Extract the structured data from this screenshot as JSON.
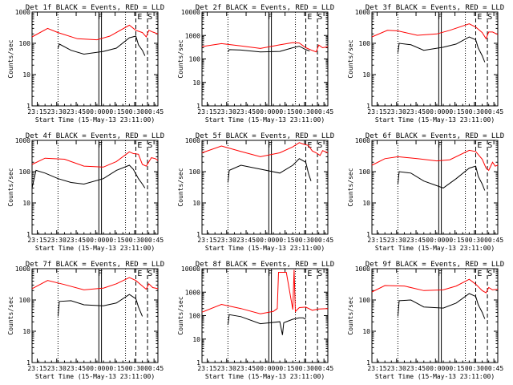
{
  "colors": {
    "events": "#000000",
    "lld": "#ff0000",
    "axes": "#000000",
    "background": "#ffffff"
  },
  "time_ticks": [
    "23:15",
    "23:30",
    "23:45",
    "00:00",
    "00:15",
    "00:30",
    "00:45"
  ],
  "x_label": "Start Time (15-May-13 23:11:00)",
  "y_label": "Counts/sec",
  "flags": [
    "F",
    "E",
    "S"
  ],
  "chart_data": [
    {
      "type": "line",
      "title": "Det 1f BLACK = Events, RED = LLD",
      "yscale": "log",
      "ylim": [
        1,
        1000
      ],
      "y_ticks": [
        "1",
        "10",
        "100",
        "1000"
      ],
      "xlim_minutes": [
        0,
        97
      ],
      "series": [
        {
          "name": "BLACK = Events",
          "color": "#000000",
          "x_minutes": [
            20,
            21,
            30,
            40,
            55,
            65,
            75,
            80,
            82,
            85,
            87
          ],
          "values": [
            70,
            95,
            60,
            45,
            55,
            70,
            150,
            170,
            90,
            60,
            40
          ]
        },
        {
          "name": "RED = LLD",
          "color": "#ff0000",
          "x_minutes": [
            0,
            12,
            20,
            35,
            50,
            60,
            75,
            80,
            85,
            88,
            90,
            93,
            97
          ],
          "values": [
            160,
            300,
            220,
            140,
            130,
            170,
            380,
            260,
            220,
            160,
            260,
            230,
            200
          ]
        }
      ]
    },
    {
      "type": "line",
      "title": "Det 2f BLACK = Events, RED = LLD",
      "yscale": "log",
      "ylim": [
        1,
        10000
      ],
      "y_ticks": [
        "1",
        "10",
        "100",
        "1000",
        "10000"
      ],
      "xlim_minutes": [
        0,
        97
      ],
      "series": [
        {
          "name": "BLACK = Events",
          "color": "#000000",
          "x_minutes": [
            20,
            21,
            30,
            45,
            60,
            70,
            75,
            80,
            83
          ],
          "values": [
            200,
            250,
            240,
            200,
            210,
            300,
            350,
            250,
            220
          ]
        },
        {
          "name": "RED = LLD",
          "color": "#ff0000",
          "x_minutes": [
            0,
            15,
            30,
            45,
            60,
            70,
            75,
            80,
            85,
            88,
            90,
            93,
            97
          ],
          "values": [
            340,
            450,
            360,
            280,
            400,
            500,
            480,
            300,
            230,
            200,
            390,
            300,
            330
          ]
        }
      ]
    },
    {
      "type": "line",
      "title": "Det 3f BLACK = Events, RED = LLD",
      "yscale": "log",
      "ylim": [
        1,
        1000
      ],
      "y_ticks": [
        "1",
        "10",
        "100",
        "1000"
      ],
      "xlim_minutes": [
        0,
        97
      ],
      "series": [
        {
          "name": "BLACK = Events",
          "color": "#000000",
          "x_minutes": [
            20,
            21,
            30,
            40,
            55,
            65,
            75,
            80,
            82,
            85,
            87
          ],
          "values": [
            50,
            100,
            90,
            60,
            75,
            95,
            160,
            130,
            70,
            40,
            25
          ]
        },
        {
          "name": "RED = LLD",
          "color": "#ff0000",
          "x_minutes": [
            0,
            12,
            20,
            35,
            50,
            60,
            75,
            80,
            85,
            88,
            90,
            93,
            97
          ],
          "values": [
            160,
            260,
            250,
            180,
            200,
            260,
            420,
            330,
            220,
            140,
            230,
            230,
            190
          ]
        }
      ]
    },
    {
      "type": "line",
      "title": "Det 4f BLACK = Events, RED = LLD",
      "yscale": "log",
      "ylim": [
        1,
        1000
      ],
      "y_ticks": [
        "1",
        "10",
        "100",
        "1000"
      ],
      "xlim_minutes": [
        0,
        97
      ],
      "series": [
        {
          "name": "BLACK = Events",
          "color": "#000000",
          "x_minutes": [
            0,
            3,
            10,
            20,
            30,
            40,
            55,
            65,
            75,
            78,
            82,
            85,
            87
          ],
          "values": [
            30,
            110,
            90,
            60,
            45,
            40,
            60,
            110,
            160,
            120,
            60,
            40,
            30
          ]
        },
        {
          "name": "RED = LLD",
          "color": "#ff0000",
          "x_minutes": [
            0,
            10,
            25,
            40,
            55,
            65,
            75,
            78,
            82,
            85,
            88,
            92,
            95,
            97
          ],
          "values": [
            170,
            270,
            250,
            150,
            140,
            210,
            430,
            380,
            360,
            170,
            150,
            280,
            260,
            230
          ]
        }
      ]
    },
    {
      "type": "line",
      "title": "Det 5f BLACK = Events, RED = LLD",
      "yscale": "log",
      "ylim": [
        1,
        1000
      ],
      "y_ticks": [
        "1",
        "10",
        "100",
        "1000"
      ],
      "xlim_minutes": [
        0,
        97
      ],
      "series": [
        {
          "name": "BLACK = Events",
          "color": "#000000",
          "x_minutes": [
            20,
            21,
            30,
            45,
            60,
            70,
            75,
            80,
            82,
            84
          ],
          "values": [
            45,
            110,
            160,
            120,
            90,
            160,
            260,
            200,
            90,
            50
          ]
        },
        {
          "name": "RED = LLD",
          "color": "#ff0000",
          "x_minutes": [
            0,
            15,
            30,
            45,
            60,
            70,
            75,
            78,
            82,
            85,
            88,
            91,
            93,
            97
          ],
          "values": [
            400,
            660,
            440,
            300,
            400,
            620,
            850,
            760,
            690,
            460,
            400,
            330,
            470,
            400
          ]
        }
      ]
    },
    {
      "type": "line",
      "title": "Det 6f BLACK = Events, RED = LLD",
      "yscale": "log",
      "ylim": [
        1,
        1000
      ],
      "y_ticks": [
        "1",
        "10",
        "100",
        "1000"
      ],
      "xlim_minutes": [
        0,
        97
      ],
      "series": [
        {
          "name": "BLACK = Events",
          "color": "#000000",
          "x_minutes": [
            20,
            21,
            30,
            40,
            55,
            65,
            75,
            80,
            82,
            85,
            87
          ],
          "values": [
            40,
            100,
            90,
            50,
            30,
            60,
            130,
            150,
            70,
            40,
            25
          ]
        },
        {
          "name": "RED = LLD",
          "color": "#ff0000",
          "x_minutes": [
            0,
            10,
            20,
            35,
            50,
            60,
            75,
            80,
            85,
            88,
            90,
            93,
            95,
            97
          ],
          "values": [
            160,
            260,
            300,
            260,
            220,
            240,
            480,
            440,
            250,
            130,
            110,
            200,
            150,
            160
          ]
        }
      ]
    },
    {
      "type": "line",
      "title": "Det 7f BLACK = Events, RED = LLD",
      "yscale": "log",
      "ylim": [
        1,
        1000
      ],
      "y_ticks": [
        "1",
        "10",
        "100",
        "1000"
      ],
      "xlim_minutes": [
        0,
        97
      ],
      "series": [
        {
          "name": "BLACK = Events",
          "color": "#000000",
          "x_minutes": [
            20,
            21,
            30,
            40,
            55,
            65,
            75,
            80,
            82,
            85
          ],
          "values": [
            30,
            90,
            95,
            70,
            65,
            80,
            150,
            110,
            60,
            30
          ]
        },
        {
          "name": "RED = LLD",
          "color": "#ff0000",
          "x_minutes": [
            0,
            12,
            25,
            40,
            55,
            65,
            75,
            80,
            85,
            88,
            90,
            93,
            97
          ],
          "values": [
            230,
            420,
            310,
            210,
            240,
            330,
            520,
            420,
            280,
            220,
            330,
            250,
            230
          ]
        }
      ]
    },
    {
      "type": "line",
      "title": "Det 8f BLACK = Events, RED = LLD",
      "yscale": "log",
      "ylim": [
        1,
        10000
      ],
      "y_ticks": [
        "1",
        "10",
        "100",
        "1000",
        "10000"
      ],
      "xlim_minutes": [
        0,
        97
      ],
      "series": [
        {
          "name": "BLACK = Events",
          "color": "#000000",
          "x_minutes": [
            20,
            21,
            30,
            45,
            60,
            62,
            63,
            65,
            70,
            75,
            78,
            80
          ],
          "values": [
            40,
            110,
            90,
            45,
            55,
            15,
            50,
            55,
            70,
            80,
            80,
            70
          ]
        },
        {
          "name": "RED = LLD",
          "color": "#ff0000",
          "x_minutes": [
            0,
            15,
            30,
            45,
            55,
            58,
            59,
            65,
            70,
            71,
            72,
            75,
            80,
            85,
            90,
            97
          ],
          "values": [
            140,
            300,
            200,
            120,
            150,
            200,
            7000,
            7000,
            180,
            9000,
            150,
            220,
            230,
            170,
            190,
            200
          ]
        }
      ]
    },
    {
      "type": "line",
      "title": "Det 9f BLACK = Events, RED = LLD",
      "yscale": "log",
      "ylim": [
        1,
        1000
      ],
      "y_ticks": [
        "1",
        "10",
        "100",
        "1000"
      ],
      "xlim_minutes": [
        0,
        97
      ],
      "series": [
        {
          "name": "BLACK = Events",
          "color": "#000000",
          "x_minutes": [
            20,
            21,
            30,
            40,
            55,
            65,
            75,
            80,
            82,
            85,
            87
          ],
          "values": [
            30,
            95,
            100,
            60,
            55,
            80,
            160,
            130,
            70,
            40,
            25
          ]
        },
        {
          "name": "RED = LLD",
          "color": "#ff0000",
          "x_minutes": [
            0,
            10,
            25,
            40,
            55,
            65,
            75,
            80,
            85,
            88,
            90,
            93,
            97
          ],
          "values": [
            180,
            290,
            280,
            200,
            210,
            280,
            460,
            320,
            200,
            170,
            250,
            210,
            220
          ]
        }
      ]
    }
  ]
}
